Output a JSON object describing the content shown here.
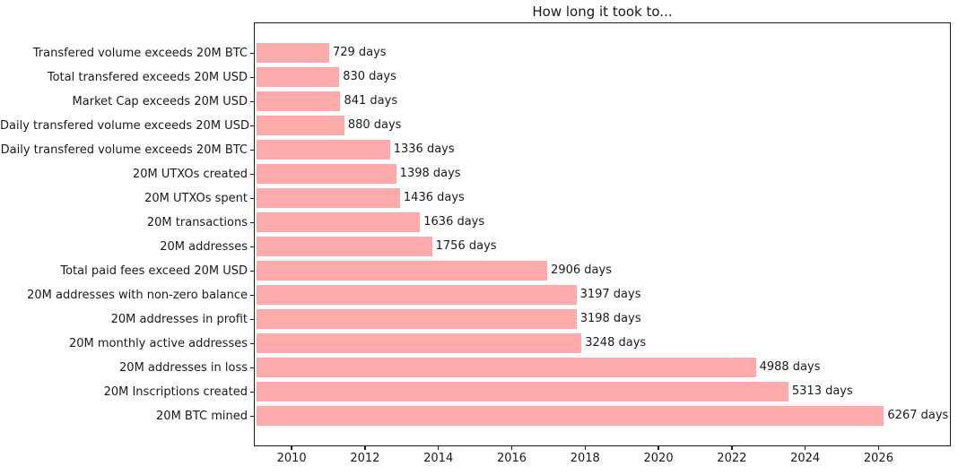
{
  "chart_data": {
    "type": "bar",
    "orientation": "horizontal",
    "title": "How long it took to...",
    "categories": [
      "Transfered volume exceeds 20M BTC",
      "Total transfered exceeds 20M USD",
      "Market Cap exceeds 20M USD",
      "Daily transfered volume exceeds 20M USD",
      "Daily transfered volume exceeds 20M BTC",
      "20M UTXOs created",
      "20M UTXOs spent",
      "20M transactions",
      "20M addresses",
      "Total paid fees exceed 20M USD",
      "20M addresses with non-zero balance",
      "20M addresses in profit",
      "20M monthly active addresses",
      "20M addresses in loss",
      "20M Inscriptions created",
      "20M BTC mined"
    ],
    "values_days": [
      729,
      830,
      841,
      880,
      1336,
      1398,
      1436,
      1636,
      1756,
      2906,
      3197,
      3198,
      3248,
      4988,
      5313,
      6267
    ],
    "value_labels": [
      "729 days",
      "830 days",
      "841 days",
      "880 days",
      "1336 days",
      "1398 days",
      "1436 days",
      "1636 days",
      "1756 days",
      "2906 days",
      "3197 days",
      "3198 days",
      "3248 days",
      "4988 days",
      "5313 days",
      "6267 days"
    ],
    "xlabel": "",
    "ylabel": "",
    "x_ticks": [
      "2010",
      "2012",
      "2014",
      "2016",
      "2018",
      "2020",
      "2022",
      "2024",
      "2026"
    ],
    "x_axis_years_range": [
      2008.97,
      2027.97
    ],
    "bars_start_year": 2009.008,
    "bar_color": "#fcaaaa",
    "text_color": "#1a1a1a",
    "grid": false,
    "legend": null
  }
}
